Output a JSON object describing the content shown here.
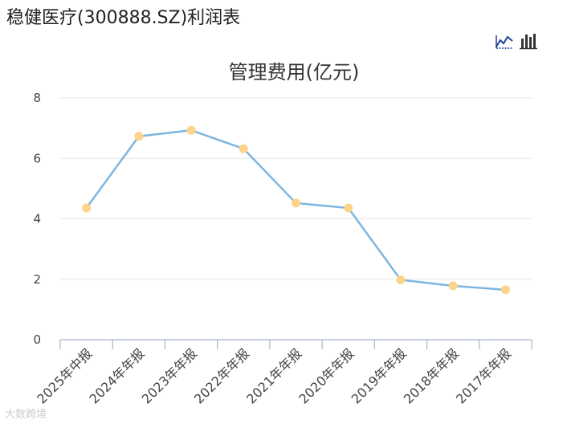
{
  "page": {
    "title": "稳健医疗(300888.SZ)利润表",
    "watermark": "大数跨境"
  },
  "toolbar": {
    "line_icon": "line-chart-icon",
    "bar_icon": "bar-chart-icon",
    "accent": "#1f3f99"
  },
  "chart_data": {
    "type": "line",
    "title": "管理费用(亿元)",
    "categories": [
      "2025年中报",
      "2024年年报",
      "2023年年报",
      "2022年年报",
      "2021年年报",
      "2020年年报",
      "2019年年报",
      "2018年年报",
      "2017年年报"
    ],
    "series": [
      {
        "values": [
          4.36,
          6.73,
          6.93,
          6.32,
          4.52,
          4.36,
          1.98,
          1.78,
          1.65
        ],
        "line_color": "#7eb6e0",
        "marker_color": "#fdd38a"
      }
    ],
    "y_ticks": [
      0,
      2,
      4,
      6,
      8
    ],
    "ylim": [
      0,
      8
    ],
    "grid": true,
    "legend": "none"
  }
}
